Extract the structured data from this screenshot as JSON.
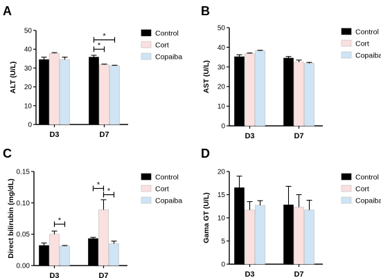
{
  "legend": [
    {
      "name": "Control",
      "color": "#000000"
    },
    {
      "name": "Cort",
      "color": "#fbe0e0"
    },
    {
      "name": "Copaiba",
      "color": "#cfe4f4"
    }
  ],
  "chart_data": [
    {
      "panel": "A",
      "type": "bar",
      "categories": [
        "D3",
        "D7"
      ],
      "ylabel": "ALT (U/L)",
      "ylim": [
        0,
        50
      ],
      "yticks": [
        0,
        10,
        20,
        30,
        40,
        50
      ],
      "series": [
        {
          "name": "Control",
          "values": [
            34.5,
            35.8
          ],
          "errors": [
            1.3,
            1.0
          ]
        },
        {
          "name": "Cort",
          "values": [
            37.8,
            31.8
          ],
          "errors": [
            0.4,
            0.3
          ]
        },
        {
          "name": "Copaiba",
          "values": [
            34.5,
            31.2
          ],
          "errors": [
            1.3,
            0.3
          ]
        }
      ],
      "significance": [
        {
          "category": "D7",
          "from": "Control",
          "to": "Cort",
          "y": 40,
          "label": "*"
        },
        {
          "category": "D7",
          "from": "Control",
          "to": "Copaiba",
          "y": 45,
          "label": "*"
        }
      ]
    },
    {
      "panel": "B",
      "type": "bar",
      "categories": [
        "D3",
        "D7"
      ],
      "ylabel": "AST (U/L)",
      "ylim": [
        0,
        50
      ],
      "yticks": [
        0,
        10,
        20,
        30,
        40,
        50
      ],
      "series": [
        {
          "name": "Control",
          "values": [
            35.2,
            34.5
          ],
          "errors": [
            1.0,
            0.8
          ]
        },
        {
          "name": "Cort",
          "values": [
            36.8,
            32.5
          ],
          "errors": [
            0.3,
            1.0
          ]
        },
        {
          "name": "Copaiba",
          "values": [
            38.2,
            31.8
          ],
          "errors": [
            0.3,
            0.5
          ]
        }
      ],
      "significance": []
    },
    {
      "panel": "C",
      "type": "bar",
      "categories": [
        "D3",
        "D7"
      ],
      "ylabel": "Direct bilirubin (mg/dL)",
      "ylim": [
        0,
        0.15
      ],
      "yticks": [
        "0.00",
        "0.05",
        "0.10",
        "0.15"
      ],
      "series": [
        {
          "name": "Control",
          "values": [
            0.032,
            0.043
          ],
          "errors": [
            0.004,
            0.002
          ]
        },
        {
          "name": "Cort",
          "values": [
            0.05,
            0.089
          ],
          "errors": [
            0.005,
            0.016
          ]
        },
        {
          "name": "Copaiba",
          "values": [
            0.031,
            0.035
          ],
          "errors": [
            0.001,
            0.004
          ]
        }
      ],
      "significance": [
        {
          "category": "D3",
          "from": "Cort",
          "to": "Copaiba",
          "y": 0.066,
          "label": "*"
        },
        {
          "category": "D7",
          "from": "Control",
          "to": "Cort",
          "y": 0.123,
          "label": "*"
        },
        {
          "category": "D7",
          "from": "Cort",
          "to": "Copaiba",
          "y": 0.113,
          "label": "*"
        }
      ]
    },
    {
      "panel": "D",
      "type": "bar",
      "categories": [
        "D3",
        "D7"
      ],
      "ylabel": "Gama GT (U/L)",
      "ylim": [
        0,
        20
      ],
      "yticks": [
        0,
        5,
        10,
        15,
        20
      ],
      "series": [
        {
          "name": "Control",
          "values": [
            16.5,
            12.8
          ],
          "errors": [
            2.5,
            4.0
          ]
        },
        {
          "name": "Cort",
          "values": [
            11.7,
            12.3
          ],
          "errors": [
            1.8,
            2.7
          ]
        },
        {
          "name": "Copaiba",
          "values": [
            12.7,
            11.7
          ],
          "errors": [
            1.0,
            2.1
          ]
        }
      ],
      "significance": []
    }
  ]
}
